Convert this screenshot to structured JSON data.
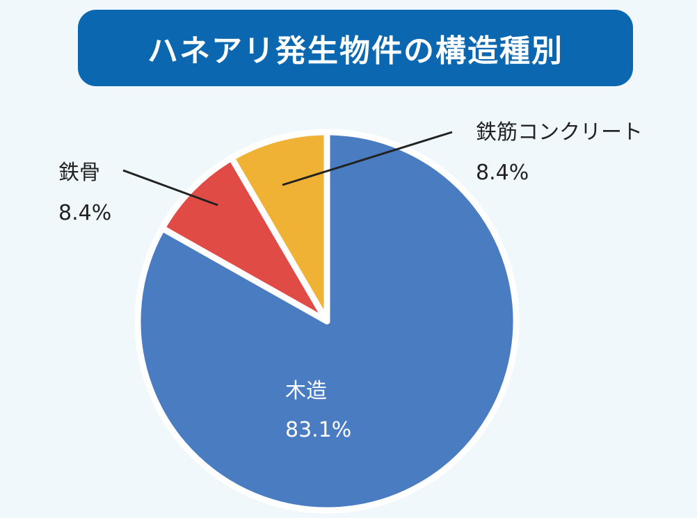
{
  "chart_data": {
    "type": "pie",
    "title": "ハネアリ発生物件の構造種別",
    "unit": "%",
    "slices": [
      {
        "name": "木造",
        "value": 83.1,
        "value_label": "83.1%",
        "color": "#4a7cc2"
      },
      {
        "name": "鉄骨",
        "value": 8.4,
        "value_label": "8.4%",
        "color": "#e04b45"
      },
      {
        "name": "鉄筋コンクリート",
        "value": 8.4,
        "value_label": "8.4%",
        "color": "#f0b234"
      }
    ],
    "start_direction": "top",
    "order": "clockwise",
    "legend": "none"
  }
}
